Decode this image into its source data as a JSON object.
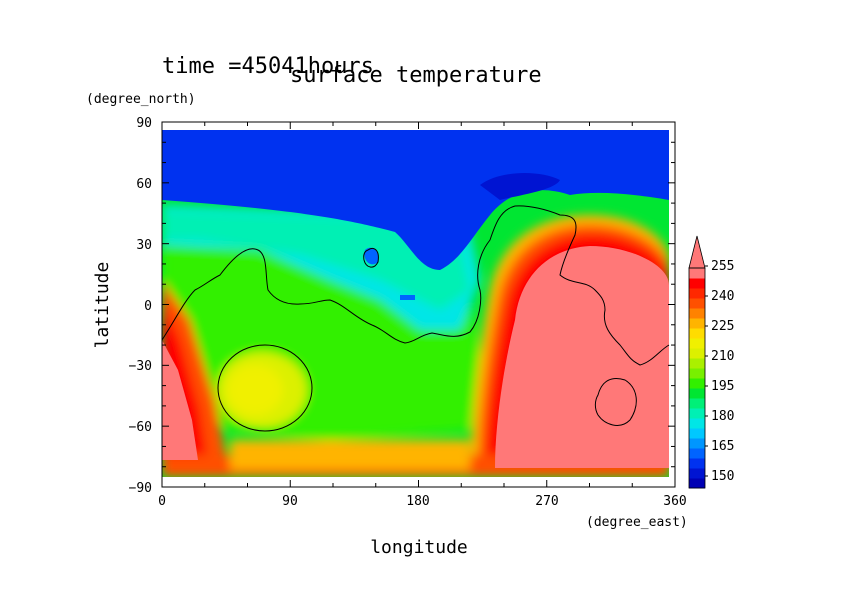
{
  "chart_data": {
    "type": "heatmap",
    "time_label": "time =45041hours",
    "title": "surface temperature",
    "xlabel": "longitude",
    "ylabel": "latitude",
    "x_unit": "(degree_east)",
    "y_unit": "(degree_north)",
    "xlim": [
      0,
      360
    ],
    "ylim": [
      -90,
      90
    ],
    "xticks": [
      "0",
      "90",
      "180",
      "270",
      "360"
    ],
    "yticks": [
      "90",
      "60",
      "30",
      "0",
      "−30",
      "−60",
      "−90"
    ],
    "colorbar": {
      "levels": [
        150,
        155,
        160,
        165,
        170,
        175,
        180,
        185,
        190,
        195,
        200,
        205,
        210,
        215,
        220,
        225,
        230,
        235,
        240,
        245,
        250,
        255
      ],
      "tick_labels": [
        "150",
        "165",
        "180",
        "195",
        "210",
        "225",
        "240",
        "255"
      ],
      "colors": [
        "#0000b4",
        "#0014d2",
        "#0032f0",
        "#0064ff",
        "#0096ff",
        "#00c8ff",
        "#00e6e6",
        "#00f0b4",
        "#00f078",
        "#00e632",
        "#32f000",
        "#78f000",
        "#aaf000",
        "#dcf000",
        "#f0f000",
        "#ffdc00",
        "#ffb400",
        "#ff8200",
        "#ff5000",
        "#ff2800",
        "#ff0000",
        "#ff7878"
      ],
      "extend": "max"
    },
    "field_description_points": {
      "north_polar_band_lat": [
        52,
        85
      ],
      "north_polar_value": 150,
      "cold_patch_lon_lat": [
        [
          255,
          65
        ],
        [
          150,
          30
        ]
      ],
      "warm_region_lon": [
        250,
        360
      ],
      "warm_region_value": 255
    }
  }
}
